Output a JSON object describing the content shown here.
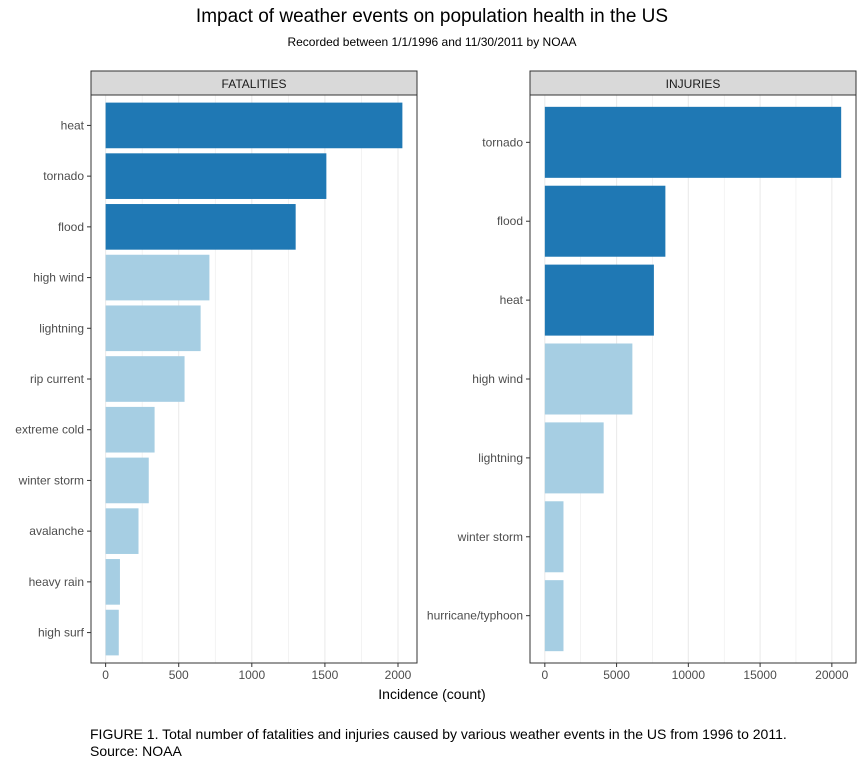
{
  "title": "Impact of weather events on population health in the US",
  "subtitle": "Recorded between 1/1/1996 and 11/30/2011 by NOAA",
  "xlabel": "Incidence (count)",
  "caption": {
    "line1": "FIGURE 1. Total number of fatalities and injuries caused by various weather events in the US from 1996 to 2011.",
    "line2": "Source: NOAA"
  },
  "colors": {
    "highlight": "#1f78b4",
    "normal": "#a6cee3",
    "strip": "#d9d9d9",
    "grid": "#ebebeb"
  },
  "chart_data": [
    {
      "type": "bar",
      "orientation": "horizontal",
      "facet": "FATALITIES",
      "categories": [
        "heat",
        "tornado",
        "flood",
        "high wind",
        "lightning",
        "rip current",
        "extreme cold",
        "winter storm",
        "avalanche",
        "heavy rain",
        "high surf"
      ],
      "values": [
        2030,
        1510,
        1300,
        710,
        650,
        540,
        335,
        295,
        225,
        98,
        90
      ],
      "highlighted": [
        true,
        true,
        true,
        false,
        false,
        false,
        false,
        false,
        false,
        false,
        false
      ],
      "xticks": [
        0,
        500,
        1000,
        1500,
        2000
      ],
      "xlim": [
        -100,
        2130
      ],
      "grid": true
    },
    {
      "type": "bar",
      "orientation": "horizontal",
      "facet": "INJURIES",
      "categories": [
        "tornado",
        "flood",
        "heat",
        "high wind",
        "lightning",
        "winter storm",
        "hurricane/typhoon"
      ],
      "values": [
        20650,
        8400,
        7600,
        6100,
        4100,
        1300,
        1300
      ],
      "highlighted": [
        true,
        true,
        true,
        false,
        false,
        false,
        false
      ],
      "xticks": [
        0,
        5000,
        10000,
        15000,
        20000
      ],
      "xlim": [
        -1033,
        21683
      ],
      "grid": true
    }
  ]
}
